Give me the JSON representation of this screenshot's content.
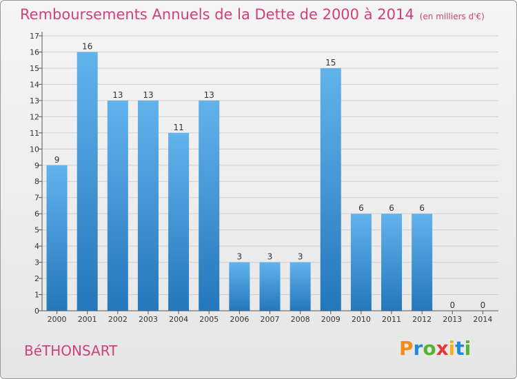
{
  "title": "Remboursements Annuels de la Dette de 2000 à 2014",
  "unit": "(en milliers d'€)",
  "commune": "BéTHONSART",
  "brand": [
    "P",
    "r",
    "o",
    "x",
    "i",
    "t",
    "i"
  ],
  "colors": {
    "title": "#d0407a",
    "bar_top": "#62b2ec",
    "bar_bottom": "#2477bb",
    "grid": "#cfcfcf",
    "axis": "#555555",
    "label": "#333333",
    "brand": [
      "#f28c1a",
      "#1f8ad6",
      "#55b333",
      "#e23a3a",
      "#f2b21a",
      "#1f8ad6",
      "#55b333"
    ]
  },
  "chart_data": {
    "type": "bar",
    "categories": [
      "2000",
      "2001",
      "2002",
      "2003",
      "2004",
      "2005",
      "2006",
      "2007",
      "2008",
      "2009",
      "2010",
      "2011",
      "2012",
      "2013",
      "2014"
    ],
    "values": [
      9,
      16,
      13,
      13,
      11,
      13,
      3,
      3,
      3,
      15,
      6,
      6,
      6,
      0,
      0
    ],
    "value_labels": [
      "9",
      "16",
      "13",
      "13",
      "11",
      "13",
      "3",
      "3",
      "3",
      "15",
      "6",
      "6",
      "6",
      "0",
      "0"
    ],
    "yticks": [
      "0",
      "1",
      "2",
      "3",
      "4",
      "5",
      "6",
      "7",
      "8",
      "9",
      "10",
      "11",
      "12",
      "13",
      "14",
      "15",
      "16",
      "17"
    ],
    "ylim": [
      0,
      17
    ],
    "title": "Remboursements Annuels de la Dette de 2000 à 2014",
    "xlabel": "",
    "ylabel": "",
    "grid": true
  }
}
